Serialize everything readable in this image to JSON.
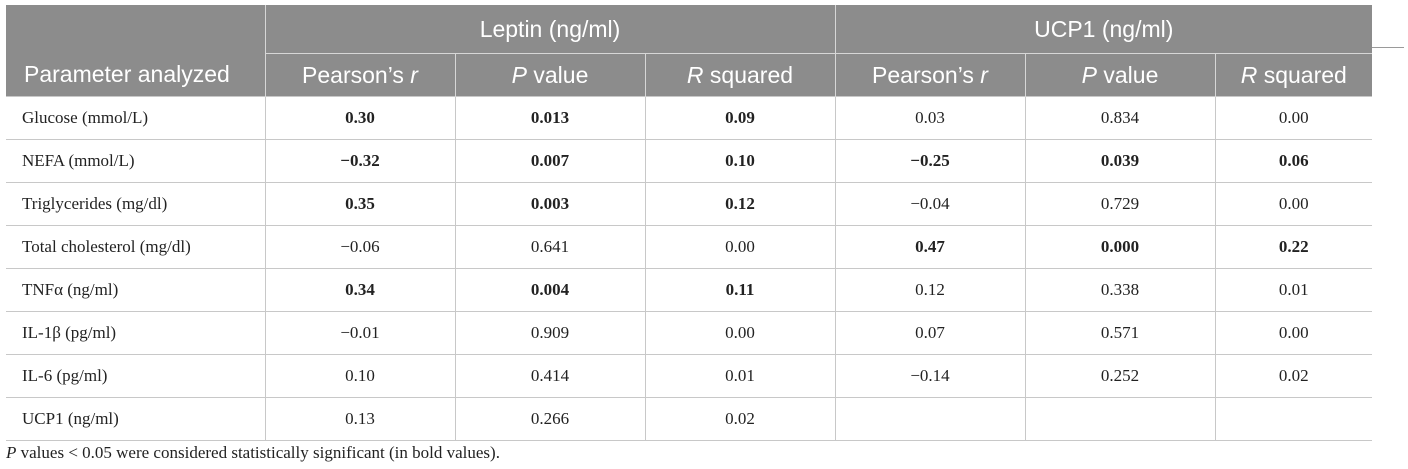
{
  "header": {
    "group_leptin": "Leptin (ng/ml)",
    "group_ucp1": "UCP1 (ng/ml)",
    "param_label": "Parameter analyzed",
    "sub": [
      {
        "italic": "",
        "rest": "Pearson’s ",
        "tail": "r"
      },
      {
        "italic": "P",
        "rest": " value",
        "tail": ""
      },
      {
        "italic": "R",
        "rest": " squared",
        "tail": ""
      }
    ]
  },
  "rows": [
    {
      "param": "Glucose (mmol/L)",
      "values": [
        "0.30",
        "0.013",
        "0.09",
        "0.03",
        "0.834",
        "0.00"
      ],
      "bold": [
        true,
        true,
        true,
        false,
        false,
        false
      ]
    },
    {
      "param": "NEFA (mmol/L)",
      "values": [
        "−0.32",
        "0.007",
        "0.10",
        "−0.25",
        "0.039",
        "0.06"
      ],
      "bold": [
        true,
        true,
        true,
        true,
        true,
        true
      ]
    },
    {
      "param": "Triglycerides (mg/dl)",
      "values": [
        "0.35",
        "0.003",
        "0.12",
        "−0.04",
        "0.729",
        "0.00"
      ],
      "bold": [
        true,
        true,
        true,
        false,
        false,
        false
      ]
    },
    {
      "param": "Total cholesterol (mg/dl)",
      "values": [
        "−0.06",
        "0.641",
        "0.00",
        "0.47",
        "0.000",
        "0.22"
      ],
      "bold": [
        false,
        false,
        false,
        true,
        true,
        true
      ]
    },
    {
      "param": "TNFα (ng/ml)",
      "values": [
        "0.34",
        "0.004",
        "0.11",
        "0.12",
        "0.338",
        "0.01"
      ],
      "bold": [
        true,
        true,
        true,
        false,
        false,
        false
      ]
    },
    {
      "param": "IL-1β (pg/ml)",
      "values": [
        "−0.01",
        "0.909",
        "0.00",
        "0.07",
        "0.571",
        "0.00"
      ],
      "bold": [
        false,
        false,
        false,
        false,
        false,
        false
      ]
    },
    {
      "param": "IL-6 (pg/ml)",
      "values": [
        "0.10",
        "0.414",
        "0.01",
        "−0.14",
        "0.252",
        "0.02"
      ],
      "bold": [
        false,
        false,
        false,
        false,
        false,
        false
      ]
    },
    {
      "param": "UCP1 (ng/ml)",
      "values": [
        "0.13",
        "0.266",
        "0.02",
        "",
        "",
        ""
      ],
      "bold": [
        false,
        false,
        false,
        false,
        false,
        false
      ]
    }
  ],
  "footnote": {
    "italic": "P",
    "rest": " values < 0.05 were considered statistically significant (in bold values)."
  }
}
